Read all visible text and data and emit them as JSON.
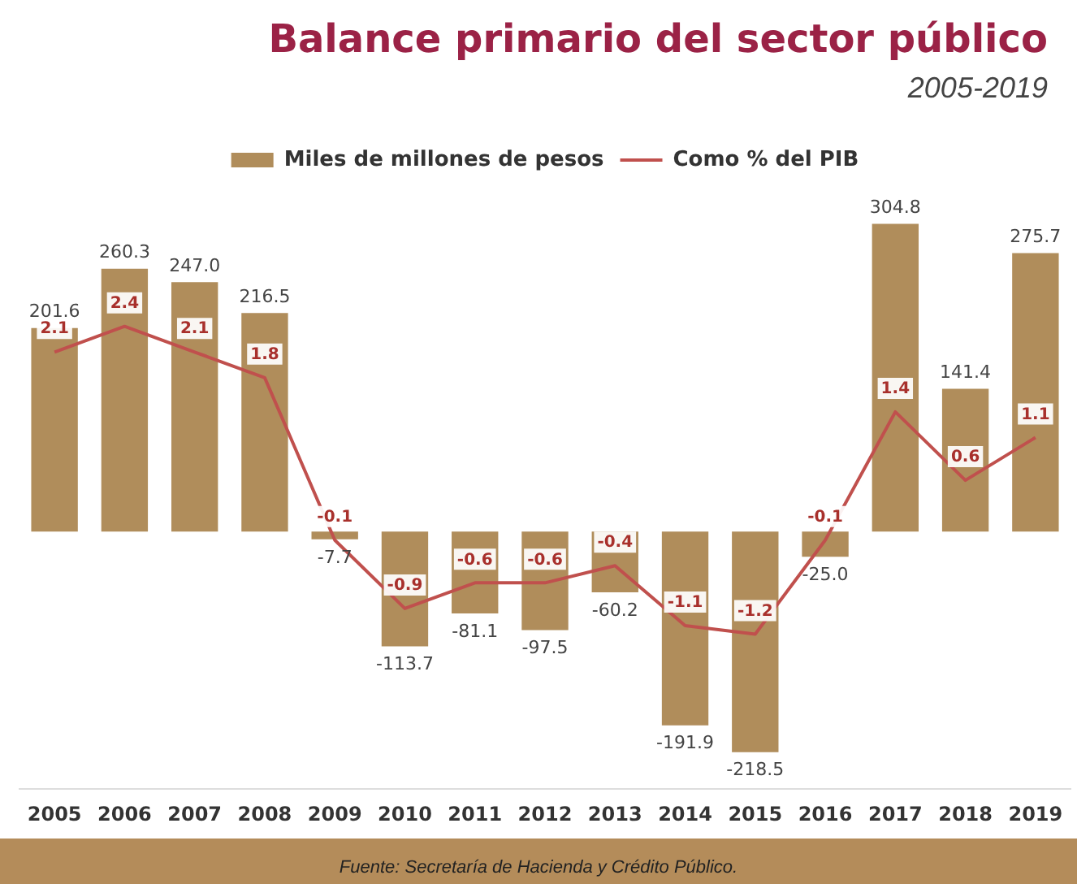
{
  "chart_data": {
    "type": "bar",
    "title": "Balance primario del sector público",
    "subtitle": "2005-2019",
    "categories": [
      "2005",
      "2006",
      "2007",
      "2008",
      "2009",
      "2010",
      "2011",
      "2012",
      "2013",
      "2014",
      "2015",
      "2016",
      "2017",
      "2018",
      "2019"
    ],
    "series": [
      {
        "name": "Miles de millones de pesos",
        "type": "bar",
        "color": "#b08d5b",
        "values": [
          201.6,
          260.3,
          247.0,
          216.5,
          -7.7,
          -113.7,
          -81.1,
          -97.5,
          -60.2,
          -191.9,
          -218.5,
          -25.0,
          304.8,
          141.4,
          275.7
        ],
        "value_labels": [
          "201.6",
          "260.3",
          "247.0",
          "216.5",
          "-7.7",
          "-113.7",
          "-81.1",
          "-97.5",
          "-60.2",
          "-191.9",
          "-218.5",
          "-25.0",
          "304.8",
          "141.4",
          "275.7"
        ]
      },
      {
        "name": "Como % del PIB",
        "type": "line",
        "axis": "y2",
        "color": "#c0504d",
        "values": [
          2.1,
          2.4,
          2.1,
          1.8,
          -0.1,
          -0.9,
          -0.6,
          -0.6,
          -0.4,
          -1.1,
          -1.2,
          -0.1,
          1.4,
          0.6,
          1.1
        ],
        "value_labels": [
          "2.1",
          "2.4",
          "2.1",
          "1.8",
          "-0.1",
          "-0.9",
          "-0.6",
          "-0.6",
          "-0.4",
          "-1.1",
          "-1.2",
          "-0.1",
          "1.4",
          "0.6",
          "1.1"
        ]
      }
    ],
    "legend": "top",
    "tick_labels": "x",
    "annotations": [
      "Fuente: Secretaría de Hacienda y Crédito Público."
    ]
  }
}
